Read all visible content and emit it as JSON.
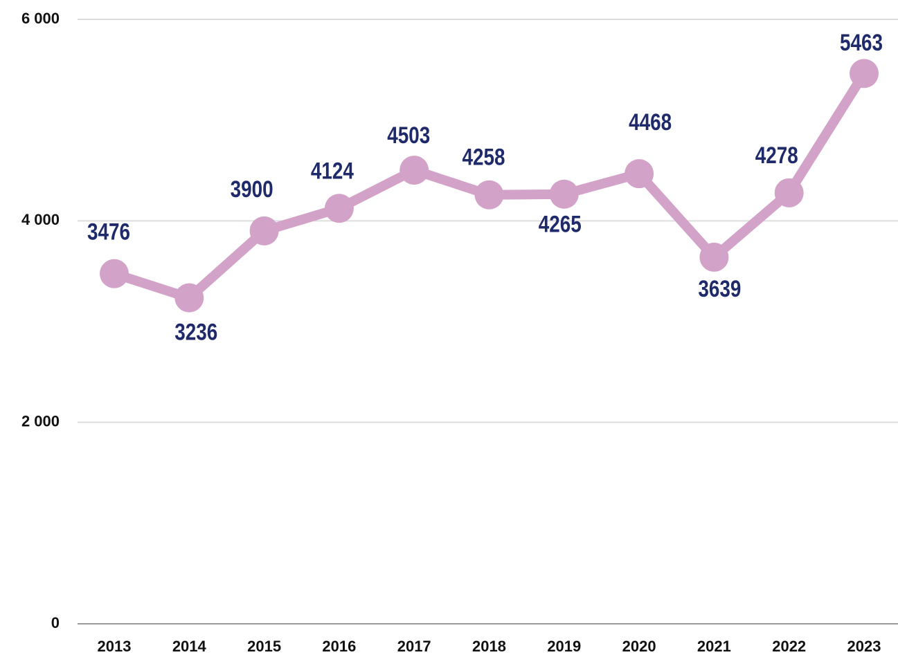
{
  "chart_data": {
    "type": "line",
    "categories": [
      "2013",
      "2014",
      "2015",
      "2016",
      "2017",
      "2018",
      "2019",
      "2020",
      "2021",
      "2022",
      "2023"
    ],
    "series": [
      {
        "color": "#d3a2c8",
        "values": [
          3476,
          3236,
          3900,
          4124,
          4503,
          4258,
          4265,
          4468,
          3639,
          4278,
          5463
        ]
      }
    ],
    "ylim": [
      0,
      6000
    ],
    "yticks": [
      0,
      {
        "value": 2000,
        "label": "2 000"
      },
      {
        "value": 4000,
        "label": "4 000"
      },
      {
        "value": 6000,
        "label": "6 000"
      }
    ],
    "grid": true
  }
}
